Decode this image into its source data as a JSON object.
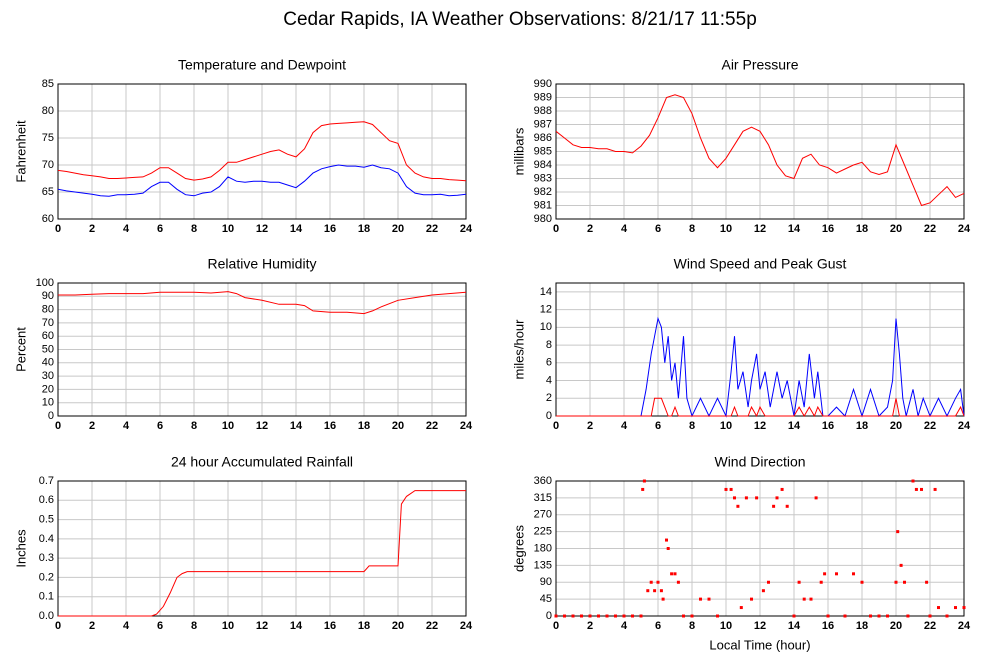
{
  "title": "Cedar Rapids, IA Weather Observations: 8/21/17 11:55p",
  "chart_data": [
    {
      "type": "line",
      "title": "Temperature and Dewpoint",
      "y_label": "Fahrenheit",
      "x": [
        0,
        0.5,
        1,
        1.5,
        2,
        2.5,
        3,
        3.5,
        4,
        4.5,
        5,
        5.5,
        6,
        6.5,
        7,
        7.5,
        8,
        8.5,
        9,
        9.5,
        10,
        10.5,
        11,
        11.5,
        12,
        12.5,
        13,
        13.5,
        14,
        14.5,
        15,
        15.5,
        16,
        16.5,
        17,
        17.5,
        18,
        18.5,
        19,
        19.5,
        20,
        20.5,
        21,
        21.5,
        22,
        22.5,
        23,
        23.5,
        24
      ],
      "series": [
        {
          "name": "Temperature",
          "color": "#ff0000",
          "values": [
            69,
            68.8,
            68.5,
            68.2,
            68,
            67.8,
            67.5,
            67.5,
            67.6,
            67.7,
            67.8,
            68.5,
            69.5,
            69.5,
            68.5,
            67.5,
            67.2,
            67.4,
            67.8,
            69,
            70.5,
            70.5,
            71,
            71.5,
            72,
            72.5,
            72.8,
            72,
            71.5,
            73,
            76,
            77.3,
            77.6,
            77.7,
            77.8,
            77.9,
            78,
            77.5,
            76,
            74.5,
            74,
            70,
            68.5,
            67.8,
            67.5,
            67.5,
            67.3,
            67.2,
            67.1
          ]
        },
        {
          "name": "Dewpoint",
          "color": "#0000ff",
          "values": [
            65.5,
            65.2,
            65,
            64.8,
            64.6,
            64.3,
            64.2,
            64.5,
            64.5,
            64.6,
            64.8,
            66,
            66.8,
            66.8,
            65.5,
            64.5,
            64.3,
            64.8,
            65,
            66,
            67.8,
            67,
            66.8,
            67,
            67,
            66.8,
            66.8,
            66.3,
            65.8,
            67,
            68.5,
            69.3,
            69.7,
            70,
            69.8,
            69.8,
            69.6,
            70,
            69.5,
            69.3,
            68.5,
            66,
            64.8,
            64.5,
            64.5,
            64.6,
            64.3,
            64.4,
            64.6
          ]
        }
      ],
      "xlim": [
        0,
        24
      ],
      "xticks": [
        0,
        2,
        4,
        6,
        8,
        10,
        12,
        14,
        16,
        18,
        20,
        22,
        24
      ],
      "ylim": [
        60,
        85
      ],
      "yticks": [
        60,
        65,
        70,
        75,
        80,
        85
      ],
      "grid": true
    },
    {
      "type": "line",
      "title": "Air Pressure",
      "y_label": "millibars",
      "x": [
        0,
        0.5,
        1,
        1.5,
        2,
        2.5,
        3,
        3.5,
        4,
        4.5,
        5,
        5.5,
        6,
        6.5,
        7,
        7.5,
        8,
        8.5,
        9,
        9.5,
        10,
        10.5,
        11,
        11.5,
        12,
        12.5,
        13,
        13.5,
        14,
        14.5,
        15,
        15.5,
        16,
        16.5,
        17,
        17.5,
        18,
        18.5,
        19,
        19.5,
        20,
        20.5,
        21,
        21.5,
        22,
        22.5,
        23,
        23.5,
        24
      ],
      "series": [
        {
          "name": "Pressure",
          "color": "#ff0000",
          "values": [
            986.5,
            986,
            985.5,
            985.3,
            985.3,
            985.2,
            985.2,
            985,
            985,
            984.9,
            985.4,
            986.2,
            987.5,
            989,
            989.2,
            989,
            987.8,
            986,
            984.5,
            983.8,
            984.5,
            985.5,
            986.5,
            986.8,
            986.5,
            985.5,
            984,
            983.2,
            983,
            984.5,
            984.8,
            984,
            983.8,
            983.4,
            983.7,
            984,
            984.2,
            983.5,
            983.3,
            983.5,
            985.5,
            984,
            982.5,
            981,
            981.2,
            981.8,
            982.4,
            981.6,
            981.9
          ]
        }
      ],
      "xlim": [
        0,
        24
      ],
      "xticks": [
        0,
        2,
        4,
        6,
        8,
        10,
        12,
        14,
        16,
        18,
        20,
        22,
        24
      ],
      "ylim": [
        980,
        990
      ],
      "yticks": [
        980,
        981,
        982,
        983,
        984,
        985,
        986,
        987,
        988,
        989,
        990
      ],
      "grid": true
    },
    {
      "type": "line",
      "title": "Relative Humidity",
      "y_label": "Percent",
      "x": [
        0,
        1,
        2,
        3,
        4,
        5,
        6,
        7,
        8,
        9,
        10,
        10.5,
        11,
        12,
        13,
        14,
        14.5,
        15,
        16,
        17,
        18,
        18.5,
        19,
        20,
        21,
        22,
        23,
        24
      ],
      "series": [
        {
          "name": "Humidity",
          "color": "#ff0000",
          "values": [
            91,
            91,
            91.5,
            92,
            92,
            92,
            93,
            93,
            93,
            92.5,
            93.5,
            92,
            89,
            87,
            84,
            84,
            83,
            79,
            78,
            78,
            77,
            79,
            82,
            87,
            89,
            91,
            92,
            93
          ]
        }
      ],
      "xlim": [
        0,
        24
      ],
      "xticks": [
        0,
        2,
        4,
        6,
        8,
        10,
        12,
        14,
        16,
        18,
        20,
        22,
        24
      ],
      "ylim": [
        0,
        100
      ],
      "yticks": [
        0,
        10,
        20,
        30,
        40,
        50,
        60,
        70,
        80,
        90,
        100
      ],
      "grid": true
    },
    {
      "type": "line",
      "title": "Wind Speed and Peak Gust",
      "y_label": "miles/hour",
      "x": [
        0,
        5,
        5.3,
        5.6,
        5.8,
        6,
        6.2,
        6.4,
        6.6,
        6.8,
        7,
        7.2,
        7.5,
        7.7,
        8,
        8.5,
        9,
        9.5,
        10,
        10.3,
        10.5,
        10.7,
        11,
        11.3,
        11.5,
        11.8,
        12,
        12.3,
        12.6,
        13,
        13.3,
        13.6,
        14,
        14.3,
        14.6,
        14.9,
        15.2,
        15.4,
        15.7,
        16,
        16.5,
        17,
        17.5,
        18,
        18.5,
        19,
        19.5,
        19.8,
        20,
        20.2,
        20.4,
        20.6,
        21,
        21.3,
        21.6,
        22,
        22.5,
        23,
        23.5,
        23.8,
        24
      ],
      "series": [
        {
          "name": "Peak Gust",
          "color": "#0000ff",
          "values": [
            0,
            0,
            3,
            7,
            9,
            11,
            10,
            6,
            9,
            4,
            6,
            2,
            9,
            2,
            0,
            2,
            0,
            2,
            0,
            5,
            9,
            3,
            5,
            1,
            4,
            7,
            3,
            5,
            1,
            5,
            2,
            4,
            0,
            4,
            1,
            7,
            2,
            5,
            0,
            0,
            1,
            0,
            3,
            0,
            3,
            0,
            1,
            4,
            11,
            7,
            2,
            0,
            3,
            0,
            2,
            0,
            2,
            0,
            2,
            3,
            0
          ]
        },
        {
          "name": "Wind Speed",
          "color": "#ff0000",
          "values": [
            0,
            0,
            0,
            0,
            2,
            2,
            2,
            1,
            0,
            0,
            1,
            0,
            0,
            0,
            0,
            0,
            0,
            0,
            0,
            0,
            1,
            0,
            0,
            0,
            1,
            0,
            1,
            0,
            0,
            0,
            0,
            0,
            0,
            1,
            0,
            1,
            0,
            1,
            0,
            0,
            0,
            0,
            0,
            0,
            0,
            0,
            0,
            0,
            2,
            0,
            0,
            0,
            0,
            0,
            0,
            0,
            0,
            0,
            0,
            1,
            0
          ]
        }
      ],
      "xlim": [
        0,
        24
      ],
      "xticks": [
        0,
        2,
        4,
        6,
        8,
        10,
        12,
        14,
        16,
        18,
        20,
        22,
        24
      ],
      "ylim": [
        0,
        15
      ],
      "yticks": [
        0,
        2,
        4,
        6,
        8,
        10,
        12,
        14
      ],
      "grid": true
    },
    {
      "type": "line",
      "title": "24 hour Accumulated Rainfall",
      "y_label": "Inches",
      "x": [
        0,
        5.5,
        5.8,
        6.2,
        6.6,
        7,
        7.3,
        7.6,
        18,
        18.3,
        20,
        20.2,
        20.5,
        21,
        24
      ],
      "series": [
        {
          "name": "Rainfall",
          "color": "#ff0000",
          "values": [
            0,
            0,
            0.01,
            0.05,
            0.12,
            0.2,
            0.22,
            0.23,
            0.23,
            0.26,
            0.26,
            0.58,
            0.62,
            0.65,
            0.65
          ]
        }
      ],
      "xlim": [
        0,
        24
      ],
      "xticks": [
        0,
        2,
        4,
        6,
        8,
        10,
        12,
        14,
        16,
        18,
        20,
        22,
        24
      ],
      "ylim": [
        0,
        0.7
      ],
      "yticks": [
        {
          "value": 0,
          "label": "0.0"
        },
        0.1,
        0.2,
        0.3,
        0.4,
        0.5,
        0.6,
        0.7
      ],
      "grid": true
    },
    {
      "type": "scatter",
      "title": "Wind Direction",
      "y_label": "degrees",
      "x_label": "Local Time (hour)",
      "color": "#ff0000",
      "x": [
        0,
        0.5,
        1,
        1.5,
        2,
        2.5,
        3,
        3.5,
        4,
        4.5,
        5,
        5.1,
        5.2,
        5.4,
        5.6,
        5.8,
        6,
        6.2,
        6.3,
        6.5,
        6.6,
        6.8,
        7,
        7.2,
        7.5,
        8,
        8.5,
        9,
        9.5,
        10,
        10.3,
        10.5,
        10.7,
        10.9,
        11.2,
        11.5,
        11.8,
        12.2,
        12.5,
        12.8,
        13,
        13.3,
        13.6,
        14,
        14.3,
        14.6,
        15,
        15.3,
        15.6,
        15.8,
        16,
        16.5,
        17,
        17.5,
        18,
        18.5,
        19,
        19.5,
        20,
        20.1,
        20.3,
        20.5,
        20.7,
        21,
        21.2,
        21.5,
        21.8,
        22,
        22.3,
        22.5,
        23,
        23.5,
        24
      ],
      "values": [
        0,
        0,
        0,
        0,
        0,
        0,
        0,
        0,
        0,
        0,
        0,
        337.5,
        360,
        67.5,
        90,
        67.5,
        90,
        67.5,
        45,
        202.5,
        180,
        112.5,
        112.5,
        90,
        0,
        0,
        45,
        45,
        0,
        337.5,
        337.5,
        315,
        292.5,
        22.5,
        315,
        45,
        315,
        67.5,
        90,
        292.5,
        315,
        337.5,
        292.5,
        0,
        90,
        45,
        45,
        315,
        90,
        112.5,
        0,
        112.5,
        0,
        112.5,
        90,
        0,
        0,
        0,
        90,
        225,
        135,
        90,
        0,
        360,
        337.5,
        337.5,
        90,
        0,
        337.5,
        22.5,
        0,
        22.5,
        22.5
      ],
      "xlim": [
        0,
        24
      ],
      "xticks": [
        0,
        2,
        4,
        6,
        8,
        10,
        12,
        14,
        16,
        18,
        20,
        22,
        24
      ],
      "ylim": [
        0,
        360
      ],
      "yticks": [
        0,
        45,
        90,
        135,
        180,
        225,
        270,
        315,
        360
      ],
      "grid": true
    }
  ]
}
